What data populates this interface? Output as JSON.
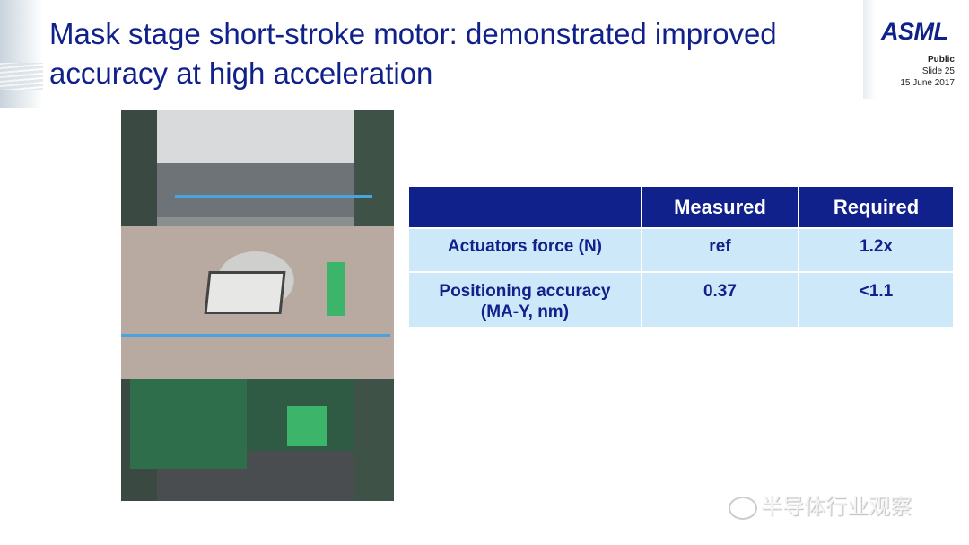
{
  "slide": {
    "title": "Mask stage short-stroke motor: demonstrated improved accuracy at high acceleration",
    "logo": "ASML",
    "classification": "Public",
    "slide_number": "Slide 25",
    "date": "15 June 2017"
  },
  "table": {
    "headers": [
      "",
      "Measured",
      "Required"
    ],
    "rows": [
      {
        "label": "Actuators force (N)",
        "measured": "ref",
        "required": "1.2x"
      },
      {
        "label_line1": "Positioning accuracy",
        "label_line2": "(MA-Y, nm)",
        "measured": "0.37",
        "required": "<1.1"
      }
    ]
  },
  "watermark": "半导体行业观察",
  "colors": {
    "brand": "#10218b",
    "header_bg": "#10218b",
    "cell_bg": "#cde8f8"
  }
}
